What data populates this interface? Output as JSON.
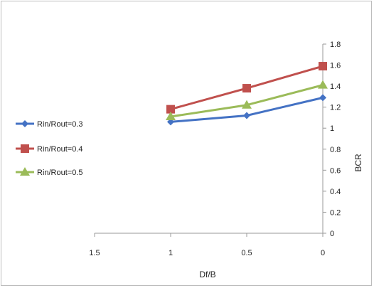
{
  "chart_data": {
    "type": "line",
    "xlabel": "Df/B",
    "ylabel": "BCR",
    "x_reversed": true,
    "xlim": [
      0,
      1.5
    ],
    "ylim": [
      0,
      1.8
    ],
    "x_ticks": [
      "1.5",
      "1",
      "0.5",
      "0"
    ],
    "x_tick_values": [
      1.5,
      1,
      0.5,
      0
    ],
    "y_ticks": [
      "0",
      "0.2",
      "0.4",
      "0.6",
      "0.8",
      "1",
      "1.2",
      "1.4",
      "1.6",
      "1.8"
    ],
    "y_tick_values": [
      0,
      0.2,
      0.4,
      0.6,
      0.8,
      1,
      1.2,
      1.4,
      1.6,
      1.8
    ],
    "grid": false,
    "legend_position": "left",
    "x": [
      1,
      0.5,
      0
    ],
    "series": [
      {
        "name": "Rin/Rout=0.3",
        "values": [
          1.06,
          1.12,
          1.29
        ],
        "color": "#4472C4",
        "marker": "diamond"
      },
      {
        "name": "Rin/Rout=0.4",
        "values": [
          1.18,
          1.38,
          1.59
        ],
        "color": "#C0504D",
        "marker": "square"
      },
      {
        "name": "Rin/Rout=0.5",
        "values": [
          1.11,
          1.22,
          1.41
        ],
        "color": "#9BBB59",
        "marker": "triangle"
      }
    ]
  }
}
